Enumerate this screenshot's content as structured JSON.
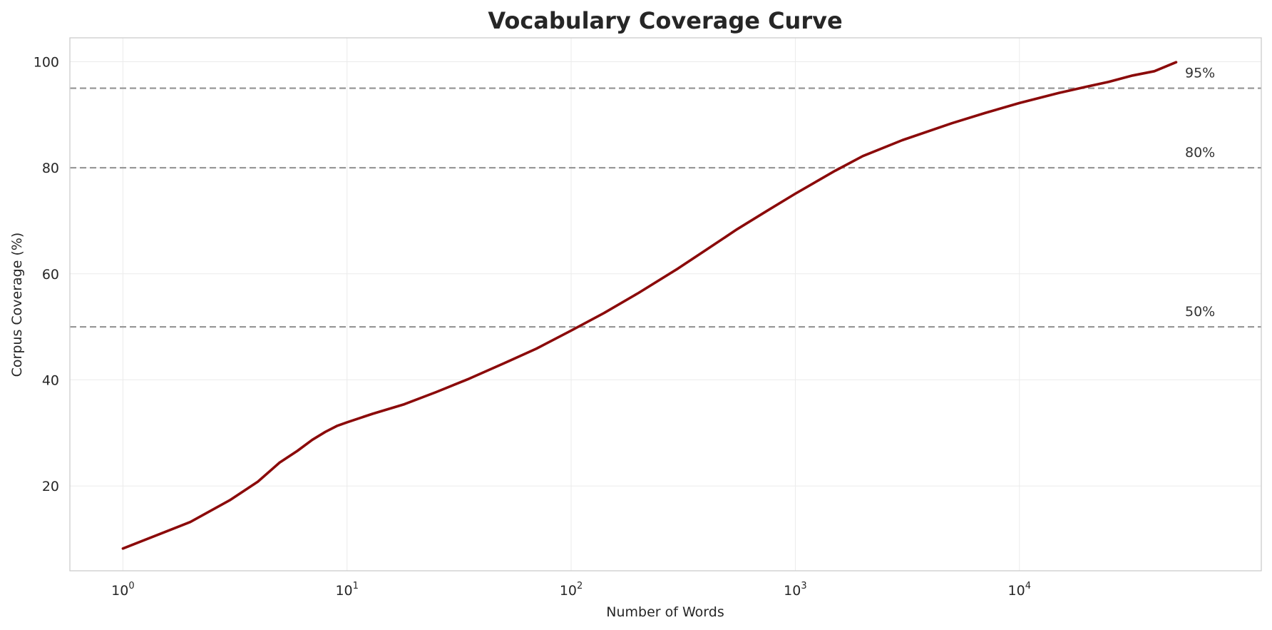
{
  "chart_data": {
    "type": "line",
    "title": "Vocabulary Coverage Curve",
    "xlabel": "Number of Words",
    "ylabel": "Corpus Coverage (%)",
    "x_scale": "log",
    "xlim": [
      0.58,
      120000
    ],
    "ylim": [
      4,
      104.5
    ],
    "x_ticks": [
      {
        "base": "10",
        "exp": "0",
        "value": 1
      },
      {
        "base": "10",
        "exp": "1",
        "value": 10
      },
      {
        "base": "10",
        "exp": "2",
        "value": 100
      },
      {
        "base": "10",
        "exp": "3",
        "value": 1000
      },
      {
        "base": "10",
        "exp": "4",
        "value": 10000
      }
    ],
    "y_ticks": [
      {
        "label": "20",
        "value": 20
      },
      {
        "label": "40",
        "value": 40
      },
      {
        "label": "60",
        "value": 60
      },
      {
        "label": "80",
        "value": 80
      },
      {
        "label": "100",
        "value": 100
      }
    ],
    "grid": true,
    "reference_lines": [
      {
        "label": "95%",
        "value": 95
      },
      {
        "label": "80%",
        "value": 80
      },
      {
        "label": "50%",
        "value": 50
      }
    ],
    "line_color": "#8b0a0a",
    "series": [
      {
        "x": [
          1,
          2,
          3,
          4,
          5,
          6,
          7,
          8,
          9,
          10,
          13,
          18,
          25,
          35,
          50,
          70,
          100,
          140,
          200,
          300,
          400,
          550,
          750,
          1000,
          1500,
          2000,
          3000,
          5000,
          7000,
          10000,
          15000,
          20000,
          25000,
          32000,
          40000,
          50000
        ],
        "y": [
          8.2,
          13.2,
          17.3,
          20.8,
          24.4,
          26.6,
          28.7,
          30.2,
          31.3,
          32,
          33.6,
          35.4,
          37.7,
          40.2,
          43.1,
          45.9,
          49.3,
          52.6,
          56.4,
          61,
          64.5,
          68.4,
          71.9,
          75.1,
          79.4,
          82.2,
          85.2,
          88.4,
          90.3,
          92.2,
          94.1,
          95.3,
          96.2,
          97.4,
          98.2,
          99.9
        ]
      }
    ]
  }
}
